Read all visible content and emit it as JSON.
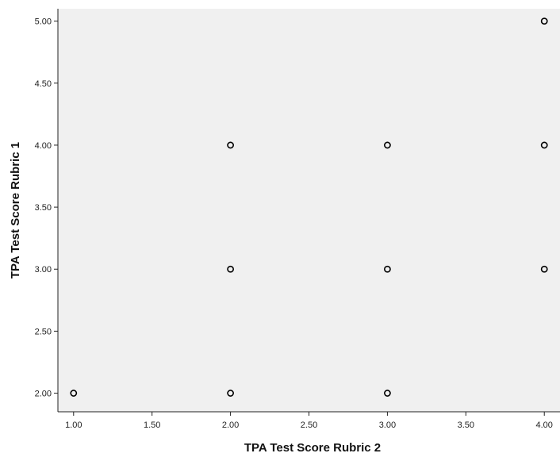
{
  "chart_data": {
    "type": "scatter",
    "xlabel": "TPA Test Score Rubric 2",
    "ylabel": "TPA Test Score Rubric 1",
    "xlim": [
      0.9,
      4.1
    ],
    "ylim": [
      1.85,
      5.1
    ],
    "x_ticks": [
      "1.00",
      "1.50",
      "2.00",
      "2.50",
      "3.00",
      "3.50",
      "4.00"
    ],
    "y_ticks": [
      "2.00",
      "2.50",
      "3.00",
      "3.50",
      "4.00",
      "4.50",
      "5.00"
    ],
    "grid": false,
    "plot_background": "#f0f0f0",
    "marker_color": "#000000",
    "points": [
      {
        "x": 1,
        "y": 2
      },
      {
        "x": 2,
        "y": 2
      },
      {
        "x": 3,
        "y": 2
      },
      {
        "x": 2,
        "y": 3
      },
      {
        "x": 3,
        "y": 3
      },
      {
        "x": 4,
        "y": 3
      },
      {
        "x": 2,
        "y": 4
      },
      {
        "x": 3,
        "y": 4
      },
      {
        "x": 4,
        "y": 4
      },
      {
        "x": 4,
        "y": 5
      }
    ]
  }
}
